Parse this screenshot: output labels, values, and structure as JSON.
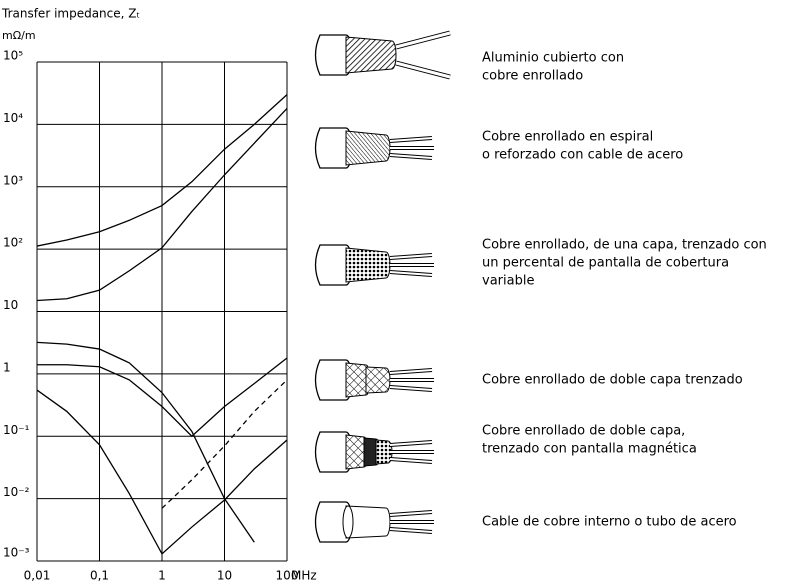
{
  "chart_data": {
    "type": "line",
    "y_label": "Transfer impedance, Zₜ",
    "y_unit": "mΩ/m",
    "x_unit": "MHz",
    "log_x": true,
    "log_y": true,
    "grid": true,
    "xlim": [
      0.01,
      100
    ],
    "xticks": [
      {
        "value": 0.01,
        "label": "0,01"
      },
      {
        "value": 0.1,
        "label": "0,1"
      },
      1,
      10,
      100
    ],
    "ylim": [
      0.001,
      100000
    ],
    "yticks": [
      {
        "value": 0.001,
        "label": "10⁻³"
      },
      {
        "value": 0.01,
        "label": "10⁻²"
      },
      {
        "value": 0.1,
        "label": "10⁻¹"
      },
      1,
      10,
      {
        "value": 100,
        "label": "10²"
      },
      {
        "value": 1000,
        "label": "10³"
      },
      {
        "value": 10000,
        "label": "10⁴"
      },
      {
        "value": 100000,
        "label": "10⁵"
      }
    ],
    "x": [
      0.01,
      0.03,
      0.1,
      0.3,
      1,
      3,
      10,
      30,
      100
    ],
    "series": [
      {
        "color": "#000",
        "dashed": false,
        "values": [
          112,
          140,
          190,
          290,
          500,
          1200,
          4000,
          10000,
          30000
        ]
      },
      {
        "color": "#000",
        "dashed": false,
        "values": [
          15,
          16,
          22,
          45,
          105,
          400,
          1550,
          5000,
          18000
        ]
      },
      {
        "color": "#000",
        "dashed": false,
        "values": [
          3.2,
          3,
          2.5,
          1.5,
          0.5,
          0.12,
          0.01,
          0.002,
          null
        ]
      },
      {
        "color": "#000",
        "dashed": false,
        "values": [
          1.4,
          1.4,
          1.3,
          0.8,
          0.3,
          0.1,
          0.3,
          0.7,
          1.8
        ]
      },
      {
        "color": "#000",
        "dashed": true,
        "values": [
          null,
          null,
          null,
          null,
          0.007,
          0.02,
          0.07,
          0.25,
          0.8
        ]
      },
      {
        "color": "#000",
        "dashed": false,
        "values": [
          0.55,
          0.25,
          0.073,
          0.012,
          0.0013,
          0.0035,
          0.0095,
          0.03,
          0.087
        ]
      }
    ]
  },
  "cables": [
    {
      "lines": [
        "Aluminio cubierto con",
        "cobre enrollado"
      ]
    },
    {
      "lines": [
        "Cobre enrollado en espiral",
        "o reforzado con cable de acero"
      ]
    },
    {
      "lines": [
        "Cobre enrollado, de una capa, trenzado con",
        "un percental de pantalla de cobertura",
        "variable"
      ]
    },
    {
      "lines": [
        "Cobre enrollado de doble capa trenzado"
      ]
    },
    {
      "lines": [
        "Cobre enrollado de doble capa,",
        "trenzado con pantalla magnética"
      ]
    },
    {
      "lines": [
        "Cable de cobre interno o tubo de acero"
      ]
    }
  ]
}
